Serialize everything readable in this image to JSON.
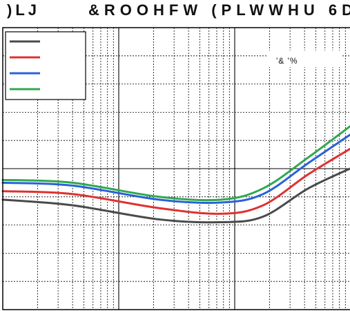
{
  "figure_label": ")LJ",
  "title_text": "&ROOHFW (PLWWHU 6D",
  "chart_data": {
    "type": "line",
    "title": "&ROOHFW (PLWWHU 6D",
    "xlabel": "",
    "ylabel": "",
    "grid": true,
    "xscale": "log",
    "xlim": [
      0,
      1
    ],
    "ylim": [
      0,
      1
    ],
    "legend": {
      "placement": "top-left",
      "entries": 4
    },
    "annotation": "'&  '%",
    "series": [
      {
        "color": "#4a4a4a",
        "x": [
          0,
          0.2,
          0.45,
          0.63,
          0.75,
          0.88,
          1.0
        ],
        "y": [
          0.39,
          0.37,
          0.32,
          0.31,
          0.33,
          0.43,
          0.5
        ]
      },
      {
        "color": "#e03030",
        "x": [
          0,
          0.2,
          0.45,
          0.63,
          0.75,
          0.88,
          1.0
        ],
        "y": [
          0.42,
          0.41,
          0.36,
          0.34,
          0.37,
          0.48,
          0.57
        ]
      },
      {
        "color": "#2a62d8",
        "x": [
          0,
          0.2,
          0.45,
          0.63,
          0.75,
          0.88,
          1.0
        ],
        "y": [
          0.45,
          0.44,
          0.39,
          0.38,
          0.41,
          0.52,
          0.62
        ]
      },
      {
        "color": "#2fa84f",
        "x": [
          0,
          0.2,
          0.45,
          0.63,
          0.75,
          0.88,
          1.0
        ],
        "y": [
          0.46,
          0.45,
          0.4,
          0.39,
          0.43,
          0.54,
          0.65
        ]
      }
    ]
  }
}
